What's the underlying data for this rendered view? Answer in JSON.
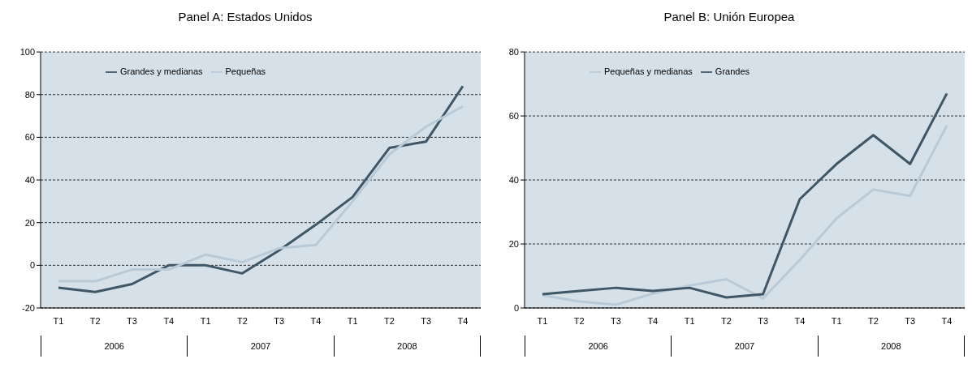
{
  "chart_data": [
    {
      "type": "line",
      "title": "Panel A: Estados Unidos",
      "categories": [
        "T1",
        "T2",
        "T3",
        "T4",
        "T1",
        "T2",
        "T3",
        "T4",
        "T1",
        "T2",
        "T3",
        "T4"
      ],
      "annotations": [
        "2006",
        "2007",
        "2008"
      ],
      "ylim": [
        -20,
        100
      ],
      "yticks": [
        -20,
        0,
        20,
        40,
        60,
        80,
        100
      ],
      "grid": "y",
      "legend": "top left",
      "marker": "none",
      "line_style": "solid",
      "series": [
        {
          "name": "Grandes y medianas",
          "color": "#3f5666",
          "values": [
            -10.5,
            -12.5,
            -8.8,
            0,
            0,
            -3.8,
            7,
            19,
            32,
            55,
            58,
            84
          ]
        },
        {
          "name": "Pequeñas",
          "color": "#b8cad8",
          "values": [
            -7.5,
            -7.5,
            -2,
            -2,
            5,
            1.5,
            8,
            9.5,
            30,
            52,
            65,
            74.5
          ]
        }
      ]
    },
    {
      "type": "line",
      "title": "Panel B: Unión Europea",
      "categories": [
        "T1",
        "T2",
        "T3",
        "T4",
        "T1",
        "T2",
        "T3",
        "T4",
        "T1",
        "T2",
        "T3",
        "T4"
      ],
      "annotations": [
        "2006",
        "2007",
        "2008"
      ],
      "ylim": [
        0,
        80
      ],
      "yticks": [
        0,
        20,
        40,
        60,
        80
      ],
      "grid": "y",
      "legend": "top left",
      "marker": "none",
      "line_style": "solid",
      "series": [
        {
          "name": "Pequeñas y medianas",
          "color": "#b8cad8",
          "values": [
            4,
            2,
            1,
            4.5,
            7,
            9,
            3,
            15,
            28,
            37,
            35,
            57
          ]
        },
        {
          "name": "Grandes",
          "color": "#3f5666",
          "values": [
            4.3,
            5.3,
            6.3,
            5.3,
            6.3,
            3.3,
            4.3,
            34,
            45,
            54,
            45,
            67
          ]
        }
      ]
    }
  ]
}
